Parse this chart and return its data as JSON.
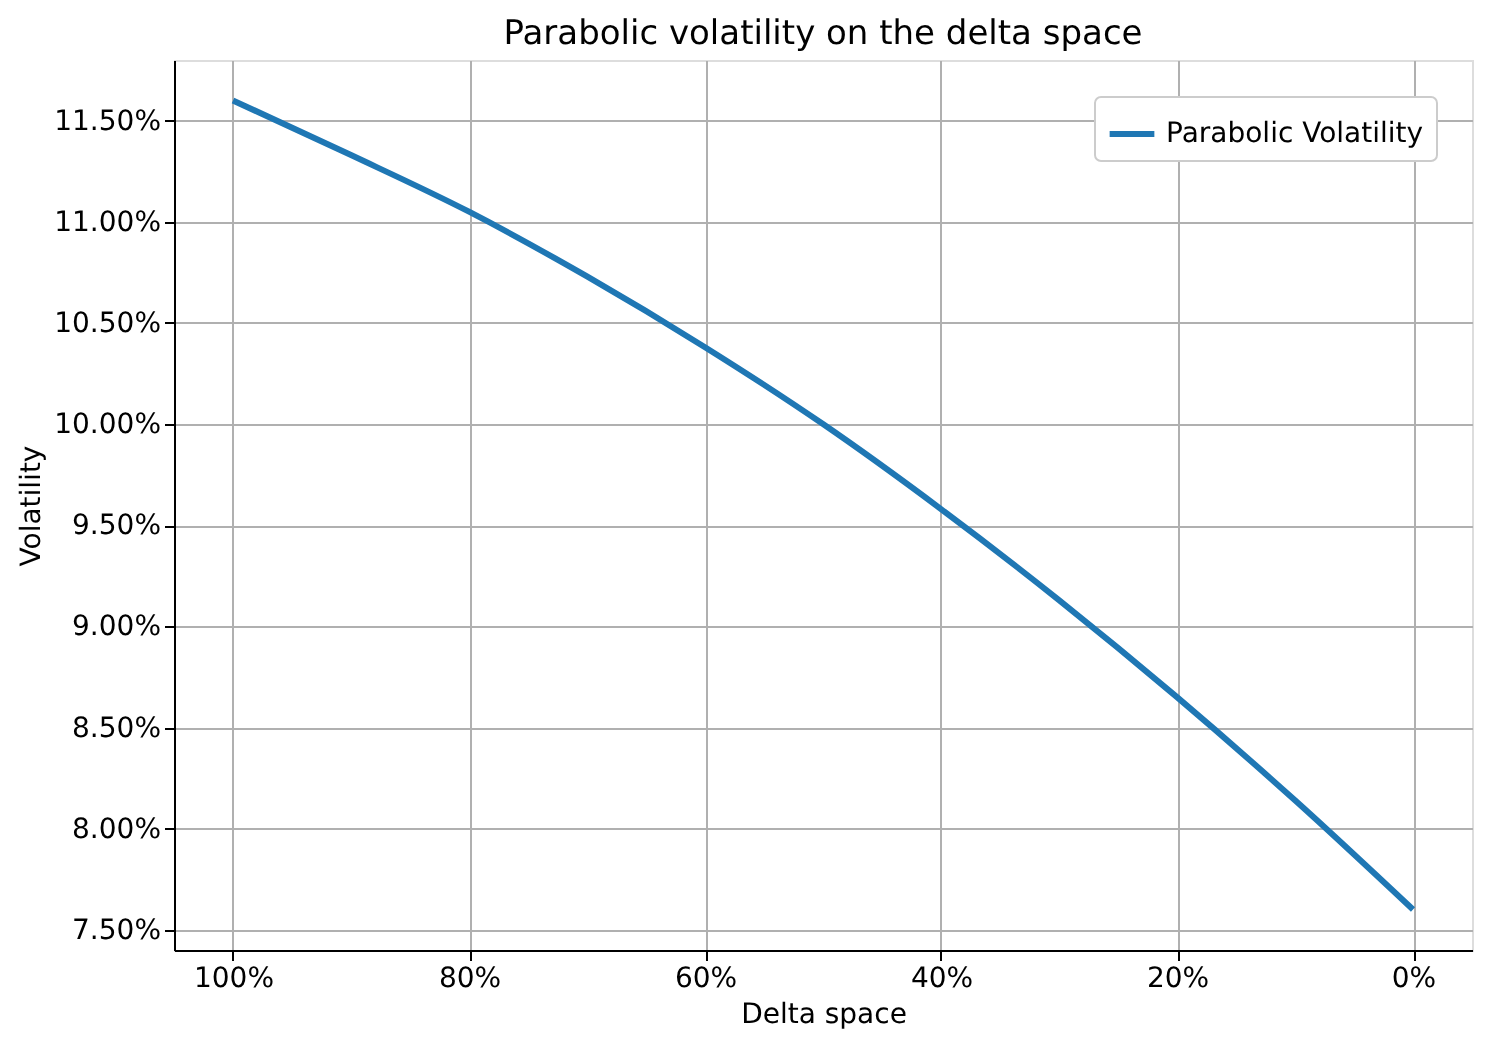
{
  "chart_data": {
    "type": "line",
    "title": "Parabolic volatility on the delta space",
    "xlabel": "Delta space",
    "ylabel": "Volatility",
    "x": [
      100,
      90,
      80,
      70,
      60,
      50,
      40,
      30,
      20,
      10,
      0
    ],
    "series": [
      {
        "name": "Parabolic Volatility",
        "color": "#1f77b4",
        "values": [
          11.6,
          11.33,
          11.05,
          10.73,
          10.38,
          10.0,
          9.58,
          9.13,
          8.65,
          8.14,
          7.6
        ]
      }
    ],
    "xlim": [
      105,
      -5
    ],
    "xticks": [
      {
        "value": 100,
        "label": "100%"
      },
      {
        "value": 80,
        "label": "80%"
      },
      {
        "value": 60,
        "label": "60%"
      },
      {
        "value": 40,
        "label": "40%"
      },
      {
        "value": 20,
        "label": "20%"
      },
      {
        "value": 0,
        "label": "0%"
      }
    ],
    "ylim": [
      7.4,
      11.8
    ],
    "yticks": [
      {
        "value": 7.5,
        "label": "7.50%"
      },
      {
        "value": 8.0,
        "label": "8.00%"
      },
      {
        "value": 8.5,
        "label": "8.50%"
      },
      {
        "value": 9.0,
        "label": "9.00%"
      },
      {
        "value": 9.5,
        "label": "9.50%"
      },
      {
        "value": 10.0,
        "label": "10.00%"
      },
      {
        "value": 10.5,
        "label": "10.50%"
      },
      {
        "value": 11.0,
        "label": "11.00%"
      },
      {
        "value": 11.5,
        "label": "11.50%"
      }
    ],
    "grid": true,
    "legend": "top right",
    "marker": "none",
    "line_style": "solid"
  }
}
